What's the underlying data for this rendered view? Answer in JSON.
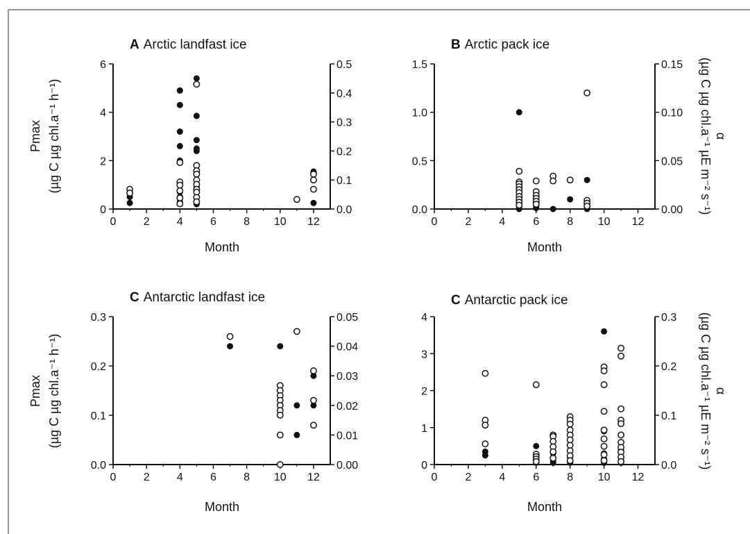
{
  "chart_data": [
    {
      "type": "scatter",
      "panel_letter": "A",
      "title": "Arctic landfast ice",
      "xlabel": "Month",
      "ylabel_line1": "Pmax",
      "ylabel_line2": "(µg C µg chl.a⁻¹ h⁻¹)",
      "ylabel_right": "",
      "xlim": [
        0,
        13
      ],
      "xticks": [
        "0",
        "2",
        "4",
        "6",
        "8",
        "10",
        "12"
      ],
      "ylim": [
        0,
        6
      ],
      "yticks": [
        "0",
        "2",
        "4",
        "6"
      ],
      "y2lim": [
        0,
        0.5
      ],
      "y2ticks": [
        "0.0",
        "0.1",
        "0.2",
        "0.3",
        "0.4",
        "0.5"
      ],
      "series": [
        {
          "marker": "filled",
          "axis": "left",
          "x": [
            1,
            1,
            4,
            4,
            4,
            4,
            4,
            4,
            4,
            4,
            4,
            4,
            5,
            5,
            5,
            5,
            5,
            5,
            5,
            5,
            5,
            12,
            12,
            12
          ],
          "y": [
            0.25,
            0.5,
            4.9,
            4.3,
            3.2,
            2.6,
            1.1,
            0.7,
            0.5,
            0.3,
            2.0,
            4.9,
            5.4,
            3.85,
            2.85,
            2.5,
            2.4,
            1.5,
            0.9,
            0.5,
            0.2,
            1.55,
            1.5,
            0.25
          ]
        },
        {
          "marker": "open",
          "axis": "right",
          "x": [
            1,
            1,
            4,
            4,
            4,
            4,
            4,
            4,
            5,
            5,
            5,
            5,
            5,
            5,
            5,
            5,
            5,
            5,
            11,
            12,
            12,
            12
          ],
          "y": [
            0.068,
            0.055,
            0.16,
            0.093,
            0.082,
            0.063,
            0.038,
            0.018,
            0.43,
            0.15,
            0.132,
            0.12,
            0.1,
            0.085,
            0.068,
            0.058,
            0.04,
            0.025,
            0.033,
            0.12,
            0.1,
            0.068
          ]
        }
      ]
    },
    {
      "type": "scatter",
      "panel_letter": "B",
      "title": "Arctic pack ice",
      "xlabel": "Month",
      "ylabel_line1": "",
      "ylabel_line2": "",
      "ylabel_right": "(µg C µg chl.a⁻¹ µE m⁻² s⁻¹)",
      "ylabel_right_symbol": "α",
      "xlim": [
        0,
        13
      ],
      "xticks": [
        "0",
        "2",
        "4",
        "6",
        "8",
        "10",
        "12"
      ],
      "ylim": [
        0,
        1.5
      ],
      "yticks": [
        "0.0",
        "0.5",
        "1.0",
        "1.5"
      ],
      "y2lim": [
        0,
        0.15
      ],
      "y2ticks": [
        "0.00",
        "0.05",
        "0.10",
        "0.15"
      ],
      "series": [
        {
          "marker": "filled",
          "axis": "left",
          "x": [
            5,
            5,
            5,
            5,
            5,
            6,
            6,
            6,
            6,
            7,
            8,
            9,
            9
          ],
          "y": [
            1.0,
            0.06,
            0.04,
            0.02,
            0.0,
            0.1,
            0.06,
            0.03,
            0.01,
            0.0,
            0.1,
            0.3,
            0.0
          ]
        },
        {
          "marker": "open",
          "axis": "right",
          "x": [
            5,
            5,
            5,
            5,
            5,
            5,
            5,
            5,
            5,
            5,
            6,
            6,
            6,
            6,
            6,
            6,
            7,
            7,
            8,
            9,
            9,
            9,
            9
          ],
          "y": [
            0.039,
            0.028,
            0.026,
            0.023,
            0.02,
            0.017,
            0.013,
            0.01,
            0.007,
            0.004,
            0.029,
            0.018,
            0.014,
            0.011,
            0.008,
            0.005,
            0.034,
            0.029,
            0.03,
            0.12,
            0.009,
            0.006,
            0.003
          ]
        }
      ]
    },
    {
      "type": "scatter",
      "panel_letter": "C",
      "title": "Antarctic landfast ice",
      "xlabel": "Month",
      "ylabel_line1": "Pmax",
      "ylabel_line2": "(µg C µg chl.a⁻¹ h⁻¹)",
      "ylabel_right": "",
      "xlim": [
        0,
        13
      ],
      "xticks": [
        "0",
        "2",
        "4",
        "6",
        "8",
        "10",
        "12"
      ],
      "ylim": [
        0,
        0.3
      ],
      "yticks": [
        "0.0",
        "0.1",
        "0.2",
        "0.3"
      ],
      "y2lim": [
        0,
        0.05
      ],
      "y2ticks": [
        "0.00",
        "0.01",
        "0.02",
        "0.03",
        "0.04",
        "0.05"
      ],
      "series": [
        {
          "marker": "filled",
          "axis": "left",
          "x": [
            7,
            10,
            10,
            10,
            10,
            11,
            11,
            12,
            12
          ],
          "y": [
            0.24,
            0.24,
            0.12,
            0.06,
            0.0,
            0.12,
            0.06,
            0.18,
            0.12
          ]
        },
        {
          "marker": "open",
          "axis": "right",
          "x": [
            7,
            10,
            10,
            10,
            10,
            10,
            10,
            10,
            10,
            10,
            11,
            12,
            12,
            12
          ],
          "y": [
            0.0433,
            0.0267,
            0.025,
            0.0233,
            0.0217,
            0.02,
            0.0183,
            0.0167,
            0.01,
            0.0,
            0.045,
            0.0317,
            0.0217,
            0.0133
          ]
        }
      ]
    },
    {
      "type": "scatter",
      "panel_letter": "C",
      "title": "Antarctic pack ice",
      "xlabel": "Month",
      "ylabel_line1": "",
      "ylabel_line2": "",
      "ylabel_right": "(µg C µg chl.a⁻¹ µE m⁻² s⁻¹)",
      "ylabel_right_symbol": "α",
      "xlim": [
        0,
        13
      ],
      "xticks": [
        "0",
        "2",
        "4",
        "6",
        "8",
        "10",
        "12"
      ],
      "ylim": [
        0,
        4
      ],
      "yticks": [
        "0",
        "1",
        "2",
        "3",
        "4"
      ],
      "y2lim": [
        0,
        0.3
      ],
      "y2ticks": [
        "0.0",
        "0.1",
        "0.2",
        "0.3"
      ],
      "series": [
        {
          "marker": "filled",
          "axis": "left",
          "x": [
            3,
            3,
            6,
            6,
            6,
            7,
            7,
            7,
            8,
            8,
            8,
            10,
            10,
            10,
            10,
            10,
            10,
            11,
            11,
            11,
            11
          ],
          "y": [
            0.35,
            0.25,
            0.5,
            0.2,
            0.05,
            0.3,
            0.1,
            0.05,
            0.2,
            0.1,
            0.05,
            3.6,
            0.9,
            0.7,
            0.3,
            0.15,
            0.05,
            0.4,
            0.2,
            0.1,
            0.05
          ]
        },
        {
          "marker": "open",
          "axis": "right",
          "x": [
            3,
            3,
            3,
            3,
            6,
            6,
            6,
            6,
            6,
            7,
            7,
            7,
            7,
            7,
            7,
            8,
            8,
            8,
            8,
            8,
            8,
            8,
            8,
            8,
            8,
            10,
            10,
            10,
            10,
            10,
            10,
            10,
            10,
            10,
            11,
            11,
            11,
            11,
            11,
            11,
            11,
            11,
            11,
            11,
            11
          ],
          "y": [
            0.185,
            0.09,
            0.08,
            0.042,
            0.162,
            0.021,
            0.016,
            0.011,
            0.006,
            0.06,
            0.057,
            0.047,
            0.036,
            0.026,
            0.013,
            0.097,
            0.09,
            0.082,
            0.07,
            0.06,
            0.05,
            0.039,
            0.028,
            0.018,
            0.008,
            0.198,
            0.19,
            0.162,
            0.108,
            0.07,
            0.052,
            0.037,
            0.02,
            0.008,
            0.236,
            0.22,
            0.113,
            0.09,
            0.083,
            0.06,
            0.045,
            0.035,
            0.025,
            0.015,
            0.006
          ]
        }
      ]
    }
  ]
}
